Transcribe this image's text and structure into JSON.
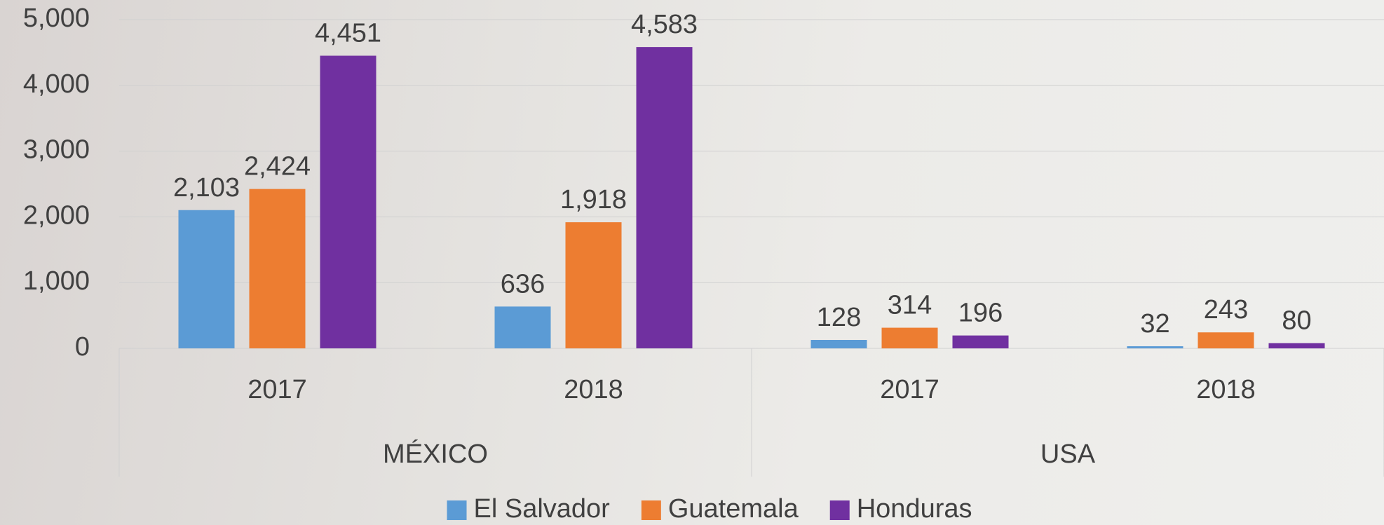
{
  "chart_data": {
    "type": "bar",
    "groups": [
      {
        "name": "MÉXICO",
        "categories": [
          "2017",
          "2018"
        ]
      },
      {
        "name": "USA",
        "categories": [
          "2017",
          "2018"
        ]
      }
    ],
    "series": [
      {
        "name": "El Salvador",
        "color": "#5b9bd5",
        "values": [
          2103,
          636,
          128,
          32
        ],
        "value_labels": [
          "2,103",
          "636",
          "128",
          "32"
        ]
      },
      {
        "name": "Guatemala",
        "color": "#ed7d31",
        "values": [
          2424,
          1918,
          314,
          243
        ],
        "value_labels": [
          "2,424",
          "1,918",
          "314",
          "243"
        ]
      },
      {
        "name": "Honduras",
        "color": "#7030a0",
        "values": [
          4451,
          4583,
          196,
          80
        ],
        "value_labels": [
          "4,451",
          "4,583",
          "196",
          "80"
        ]
      }
    ],
    "ylim": [
      0,
      5000
    ],
    "yticks": [
      0,
      {
        "value": 1000,
        "label": "1,000"
      },
      {
        "value": 2000,
        "label": "2,000"
      },
      {
        "value": 3000,
        "label": "3,000"
      },
      {
        "value": 4000,
        "label": "4,000"
      },
      {
        "value": 5000,
        "label": "5,000"
      }
    ],
    "grid": true,
    "legend": "bottom"
  }
}
